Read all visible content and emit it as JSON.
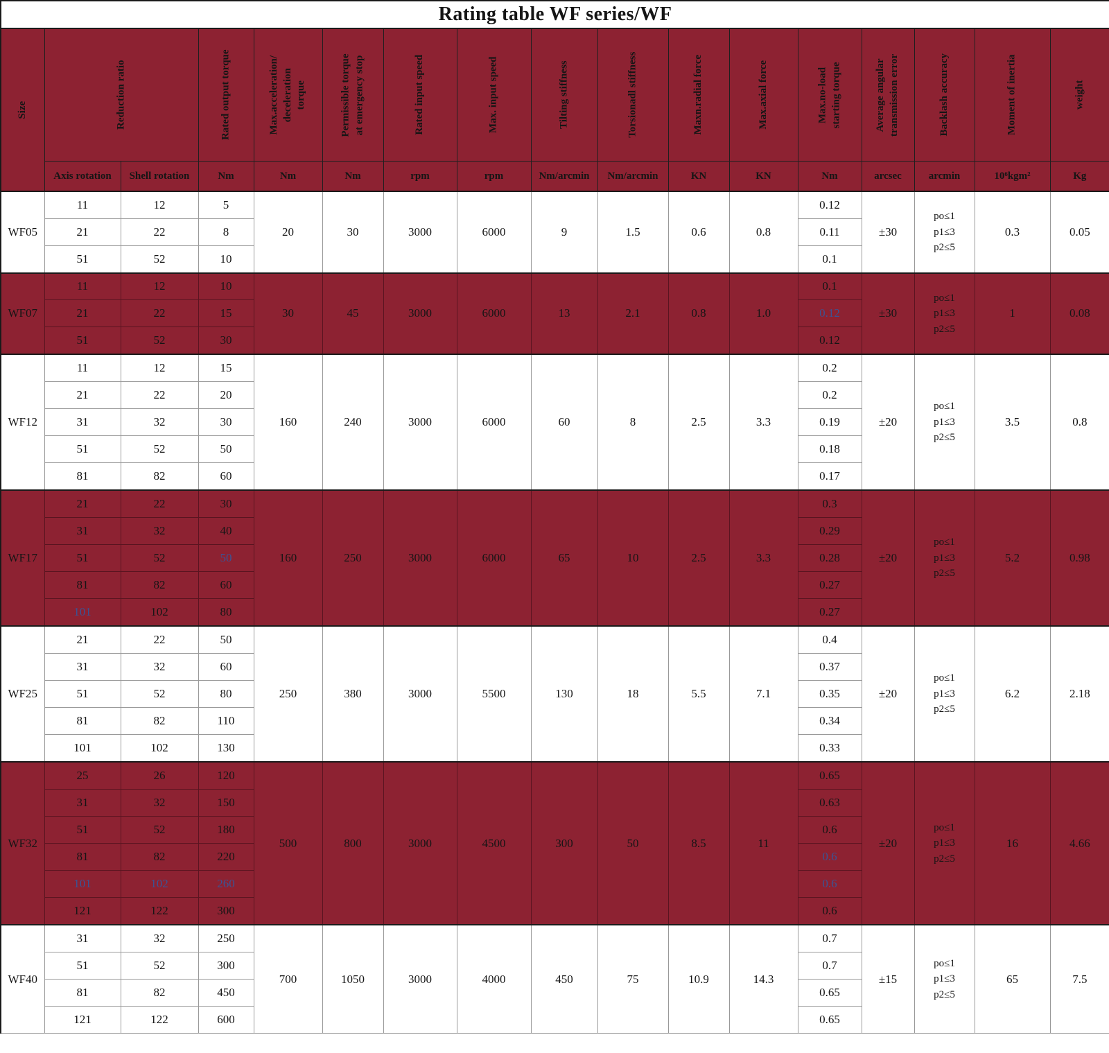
{
  "title": "Rating table WF series/WF",
  "colors": {
    "maroon": "#8d2232",
    "accent_blue": "#3b5494",
    "grid_light": "#999999",
    "grid_dark": "#5a1420",
    "frame": "#1a1a1a"
  },
  "header": {
    "size_label": "Size",
    "columns": [
      {
        "label": "Reduction ratio",
        "subs": [
          "Axis rotation",
          "Shell rotation"
        ]
      },
      {
        "label": "Rated output torque",
        "unit": "Nm"
      },
      {
        "label": "Max.acceleration/\ndeceleration\ntorque",
        "unit": "Nm"
      },
      {
        "label": "Permissible torque\nat emergency stop",
        "unit": "Nm"
      },
      {
        "label": "Rated input speed",
        "unit": "rpm"
      },
      {
        "label": "Max. input speed",
        "unit": "rpm"
      },
      {
        "label": "Tilting stiffness",
        "unit": "Nm/arcmin"
      },
      {
        "label": "Torsionadl stiffness",
        "unit": "Nm/arcmin"
      },
      {
        "label": "Maxn.radial force",
        "unit": "KN"
      },
      {
        "label": "Max.axial force",
        "unit": "KN"
      },
      {
        "label": "Max.no-load\nstarting torque",
        "unit": "Nm"
      },
      {
        "label": "Average angular\ntransmission error",
        "unit": "arcsec"
      },
      {
        "label": "Backlash accuracy",
        "unit": "arcmin"
      },
      {
        "label": "Moment of inertia",
        "unit": "10⁶kgm²"
      },
      {
        "label": "weight",
        "unit": "Kg"
      }
    ]
  },
  "merged_keys": [
    "max_accel_decel_torque",
    "emergency_stop_torque",
    "rated_input_speed",
    "max_input_speed",
    "tilting_stiffness",
    "torsional_stiffness",
    "radial_force",
    "axial_force",
    "transmission_error",
    "backlash",
    "moment_of_inertia",
    "weight"
  ],
  "groups": [
    {
      "size": "WF05",
      "shade": "light",
      "rows": [
        [
          "11",
          "12",
          "5",
          "0.12"
        ],
        [
          "21",
          "22",
          "8",
          "0.11"
        ],
        [
          "51",
          "52",
          "10",
          "0.1"
        ]
      ],
      "merged": [
        "20",
        "30",
        "3000",
        "6000",
        "9",
        "1.5",
        "0.6",
        "0.8",
        "±30",
        "po≤1\np1≤3\np2≤5",
        "0.3",
        "0.05"
      ]
    },
    {
      "size": "WF07",
      "shade": "dark",
      "rows": [
        [
          "11",
          "12",
          "10",
          "0.1"
        ],
        [
          "21",
          "22",
          "15",
          "0.12"
        ],
        [
          "51",
          "52",
          "30",
          "0.12"
        ]
      ],
      "blue": {
        "3": [
          1
        ]
      },
      "merged": [
        "30",
        "45",
        "3000",
        "6000",
        "13",
        "2.1",
        "0.8",
        "1.0",
        "±30",
        "po≤1\np1≤3\np2≤5",
        "1",
        "0.08"
      ]
    },
    {
      "size": "WF12",
      "shade": "light",
      "rows": [
        [
          "11",
          "12",
          "15",
          "0.2"
        ],
        [
          "21",
          "22",
          "20",
          "0.2"
        ],
        [
          "31",
          "32",
          "30",
          "0.19"
        ],
        [
          "51",
          "52",
          "50",
          "0.18"
        ],
        [
          "81",
          "82",
          "60",
          "0.17"
        ]
      ],
      "merged": [
        "160",
        "240",
        "3000",
        "6000",
        "60",
        "8",
        "2.5",
        "3.3",
        "±20",
        "po≤1\np1≤3\np2≤5",
        "3.5",
        "0.8"
      ]
    },
    {
      "size": "WF17",
      "shade": "dark",
      "rows": [
        [
          "21",
          "22",
          "30",
          "0.3"
        ],
        [
          "31",
          "32",
          "40",
          "0.29"
        ],
        [
          "51",
          "52",
          "50",
          "0.28"
        ],
        [
          "81",
          "82",
          "60",
          "0.27"
        ],
        [
          "101",
          "102",
          "80",
          "0.27"
        ]
      ],
      "blue": {
        "0": [
          4
        ],
        "2": [
          2
        ]
      },
      "merged": [
        "160",
        "250",
        "3000",
        "6000",
        "65",
        "10",
        "2.5",
        "3.3",
        "±20",
        "po≤1\np1≤3\np2≤5",
        "5.2",
        "0.98"
      ]
    },
    {
      "size": "WF25",
      "shade": "light",
      "rows": [
        [
          "21",
          "22",
          "50",
          "0.4"
        ],
        [
          "31",
          "32",
          "60",
          "0.37"
        ],
        [
          "51",
          "52",
          "80",
          "0.35"
        ],
        [
          "81",
          "82",
          "110",
          "0.34"
        ],
        [
          "101",
          "102",
          "130",
          "0.33"
        ]
      ],
      "merged": [
        "250",
        "380",
        "3000",
        "5500",
        "130",
        "18",
        "5.5",
        "7.1",
        "±20",
        "po≤1\np1≤3\np2≤5",
        "6.2",
        "2.18"
      ]
    },
    {
      "size": "WF32",
      "shade": "dark",
      "rows": [
        [
          "25",
          "26",
          "120",
          "0.65"
        ],
        [
          "31",
          "32",
          "150",
          "0.63"
        ],
        [
          "51",
          "52",
          "180",
          "0.6"
        ],
        [
          "81",
          "82",
          "220",
          "0.6"
        ],
        [
          "101",
          "102",
          "260",
          "0.6"
        ],
        [
          "121",
          "122",
          "300",
          "0.6"
        ]
      ],
      "blue": {
        "0": [
          4
        ],
        "1": [
          4
        ],
        "2": [
          4
        ],
        "3": [
          3,
          4
        ]
      },
      "merged": [
        "500",
        "800",
        "3000",
        "4500",
        "300",
        "50",
        "8.5",
        "11",
        "±20",
        "po≤1\np1≤3\np2≤5",
        "16",
        "4.66"
      ]
    },
    {
      "size": "WF40",
      "shade": "light",
      "rows": [
        [
          "31",
          "32",
          "250",
          "0.7"
        ],
        [
          "51",
          "52",
          "300",
          "0.7"
        ],
        [
          "81",
          "82",
          "450",
          "0.65"
        ],
        [
          "121",
          "122",
          "600",
          "0.65"
        ]
      ],
      "merged": [
        "700",
        "1050",
        "3000",
        "4000",
        "450",
        "75",
        "10.9",
        "14.3",
        "±15",
        "po≤1\np1≤3\np2≤5",
        "65",
        "7.5"
      ]
    }
  ]
}
